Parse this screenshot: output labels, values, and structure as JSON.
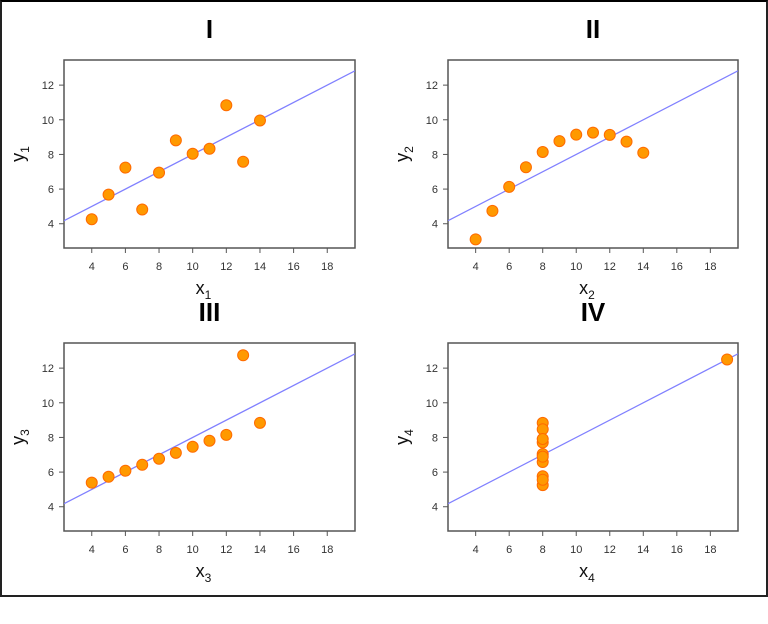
{
  "chart_data": [
    {
      "type": "scatter",
      "title": "I",
      "xlabel": "x",
      "xlabel_sub": "1",
      "ylabel": "y",
      "ylabel_sub": "1",
      "x": [
        10,
        8,
        13,
        9,
        11,
        14,
        6,
        4,
        12,
        7,
        5
      ],
      "y": [
        8.04,
        6.95,
        7.58,
        8.81,
        8.33,
        9.96,
        7.24,
        4.26,
        10.84,
        4.82,
        5.68
      ],
      "fit_line": {
        "intercept": 3,
        "slope": 0.5
      },
      "xlim": [
        2.35,
        19.65
      ],
      "ylim": [
        2.6,
        13.45
      ],
      "xticks": [
        4,
        6,
        8,
        10,
        12,
        14,
        16,
        18
      ],
      "yticks": [
        4,
        6,
        8,
        10,
        12
      ],
      "grid": false
    },
    {
      "type": "scatter",
      "title": "II",
      "xlabel": "x",
      "xlabel_sub": "2",
      "ylabel": "y",
      "ylabel_sub": "2",
      "x": [
        10,
        8,
        13,
        9,
        11,
        14,
        6,
        4,
        12,
        7,
        5
      ],
      "y": [
        9.14,
        8.14,
        8.74,
        8.77,
        9.26,
        8.1,
        6.13,
        3.1,
        9.13,
        7.26,
        4.74
      ],
      "fit_line": {
        "intercept": 3,
        "slope": 0.5
      },
      "xlim": [
        2.35,
        19.65
      ],
      "ylim": [
        2.6,
        13.45
      ],
      "xticks": [
        4,
        6,
        8,
        10,
        12,
        14,
        16,
        18
      ],
      "yticks": [
        4,
        6,
        8,
        10,
        12
      ],
      "grid": false
    },
    {
      "type": "scatter",
      "title": "III",
      "xlabel": "x",
      "xlabel_sub": "3",
      "ylabel": "y",
      "ylabel_sub": "3",
      "x": [
        10,
        8,
        13,
        9,
        11,
        14,
        6,
        4,
        12,
        7,
        5
      ],
      "y": [
        7.46,
        6.77,
        12.74,
        7.11,
        7.81,
        8.84,
        6.08,
        5.39,
        8.15,
        6.42,
        5.73
      ],
      "fit_line": {
        "intercept": 3,
        "slope": 0.5
      },
      "xlim": [
        2.35,
        19.65
      ],
      "ylim": [
        2.6,
        13.45
      ],
      "xticks": [
        4,
        6,
        8,
        10,
        12,
        14,
        16,
        18
      ],
      "yticks": [
        4,
        6,
        8,
        10,
        12
      ],
      "grid": false
    },
    {
      "type": "scatter",
      "title": "IV",
      "xlabel": "x",
      "xlabel_sub": "4",
      "ylabel": "y",
      "ylabel_sub": "4",
      "x": [
        8,
        8,
        8,
        8,
        8,
        8,
        8,
        19,
        8,
        8,
        8
      ],
      "y": [
        6.58,
        5.76,
        7.71,
        8.84,
        8.47,
        7.04,
        5.25,
        12.5,
        5.56,
        7.91,
        6.89
      ],
      "fit_line": {
        "intercept": 3,
        "slope": 0.5
      },
      "xlim": [
        2.35,
        19.65
      ],
      "ylim": [
        2.6,
        13.45
      ],
      "xticks": [
        4,
        6,
        8,
        10,
        12,
        14,
        16,
        18
      ],
      "yticks": [
        4,
        6,
        8,
        10,
        12
      ],
      "grid": false
    }
  ],
  "colors": {
    "point_fill": "#ff9900",
    "point_stroke": "#ff6a00",
    "fit_line": "#8080ff",
    "axes": "#555555"
  }
}
